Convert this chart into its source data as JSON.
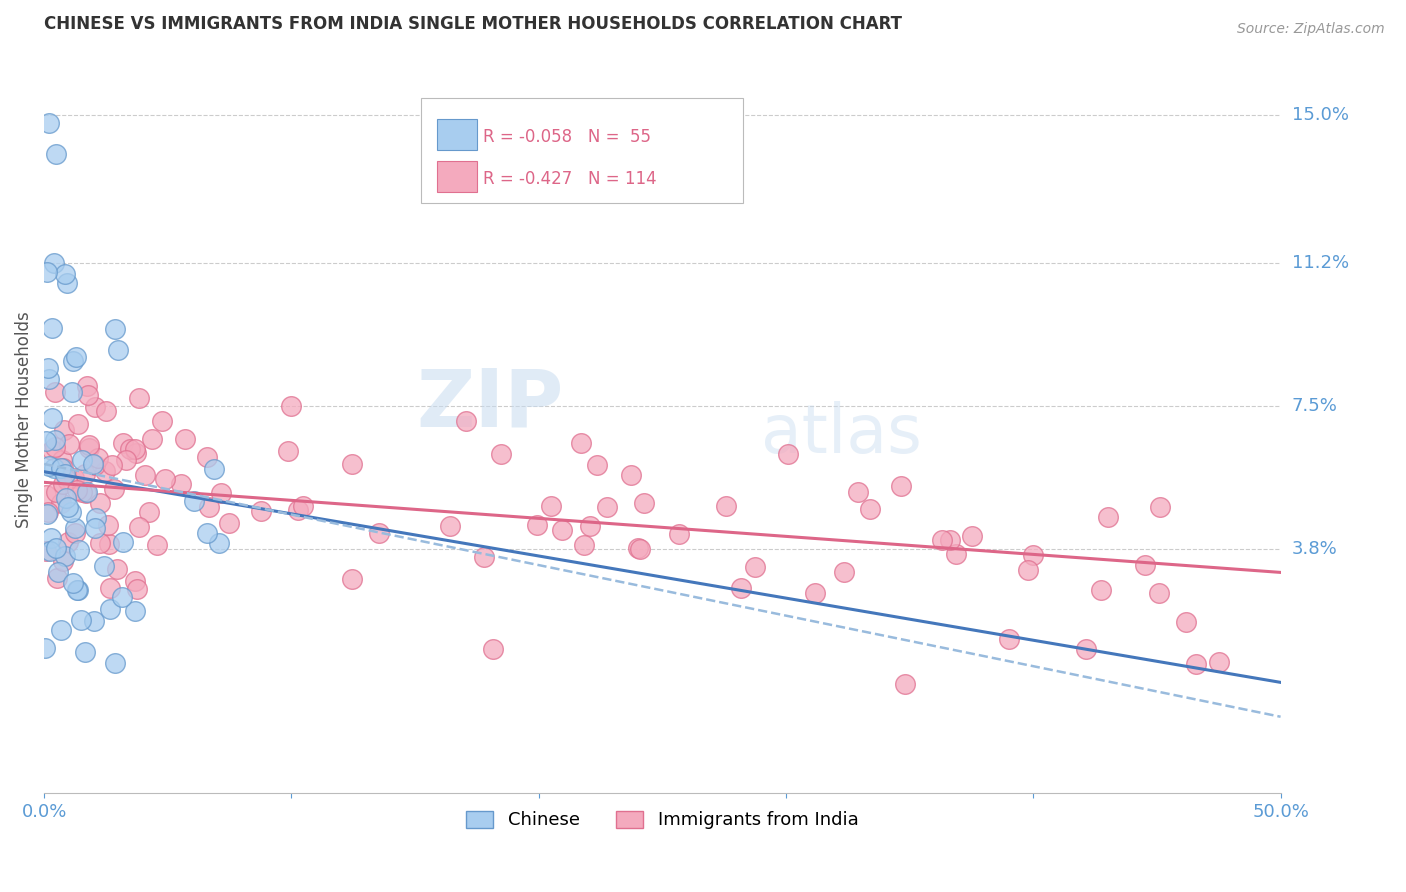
{
  "title": "CHINESE VS IMMIGRANTS FROM INDIA SINGLE MOTHER HOUSEHOLDS CORRELATION CHART",
  "source": "Source: ZipAtlas.com",
  "ylabel": "Single Mother Households",
  "ytick_labels": [
    "15.0%",
    "11.2%",
    "7.5%",
    "3.8%"
  ],
  "ytick_values": [
    0.15,
    0.112,
    0.075,
    0.038
  ],
  "xmin": 0.0,
  "xmax": 0.5,
  "ymin": -0.025,
  "ymax": 0.168,
  "watermark_zip": "ZIP",
  "watermark_atlas": "atlas",
  "legend_chinese_r": "R = -0.058",
  "legend_chinese_n": "N =  55",
  "legend_india_r": "R = -0.427",
  "legend_india_n": "N = 114",
  "chinese_fill": "#A8CDEF",
  "india_fill": "#F4AABE",
  "chinese_edge": "#6699CC",
  "india_edge": "#E07090",
  "chinese_line": "#4477BB",
  "india_line": "#DD6688",
  "dashed_line": "#99BBDD",
  "background_color": "#FFFFFF",
  "grid_color": "#CCCCCC",
  "label_color": "#5B9BD5",
  "title_color": "#333333",
  "source_color": "#999999",
  "ylabel_color": "#555555"
}
